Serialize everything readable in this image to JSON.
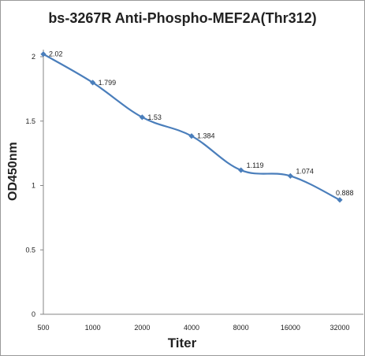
{
  "chart_data": {
    "type": "line",
    "title": "bs-3267R Anti-Phospho-MEF2A(Thr312)",
    "xlabel": "Titer",
    "ylabel": "OD450nm",
    "categories": [
      "500",
      "1000",
      "2000",
      "4000",
      "8000",
      "16000",
      "32000"
    ],
    "series": [
      {
        "values": [
          2.02,
          1.799,
          1.53,
          1.384,
          1.119,
          1.074,
          0.888
        ]
      }
    ],
    "data_labels": [
      "2.02",
      "1.799",
      "1.53",
      "1.384",
      "1.119",
      "1.074",
      "0.888"
    ],
    "yticks": [
      "0",
      "0.5",
      "1",
      "1.5",
      "2"
    ],
    "ylim": [
      0,
      2
    ],
    "grid": false,
    "legend": "none",
    "colors": {
      "line": "#4a7ebb",
      "axis": "#868686"
    }
  }
}
